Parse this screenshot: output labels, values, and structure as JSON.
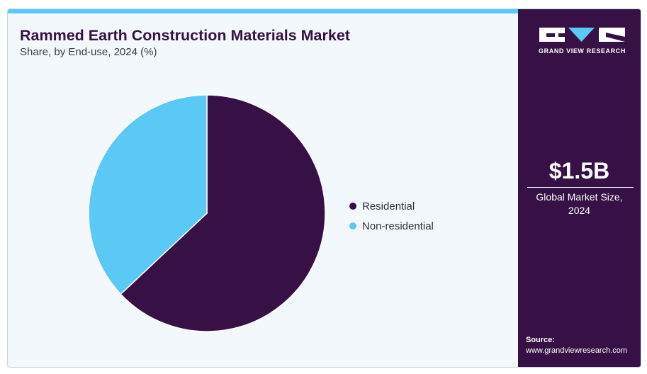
{
  "header": {
    "title": "Rammed Earth Construction Materials Market",
    "subtitle": "Share, by End-use, 2024 (%)"
  },
  "colors": {
    "residential": "#371145",
    "non_residential": "#5bc9f5",
    "accent_bar": "#5bc9f5",
    "sidebar": "#371145"
  },
  "chart_data": {
    "type": "pie",
    "title": "Rammed Earth Construction Materials Market",
    "subtitle": "Share, by End-use, 2024 (%)",
    "categories": [
      "Residential",
      "Non-residential"
    ],
    "values": [
      63,
      37
    ],
    "colors": [
      "#371145",
      "#5bc9f5"
    ],
    "start_angle_deg": 0,
    "direction": "clockwise",
    "legend_position": "right"
  },
  "sidebar": {
    "brand": "GRAND VIEW RESEARCH",
    "market_value": "$1.5B",
    "market_label_line1": "Global Market Size,",
    "market_label_line2": "2024",
    "source_title": "Source:",
    "source_url": "www.grandviewresearch.com"
  }
}
